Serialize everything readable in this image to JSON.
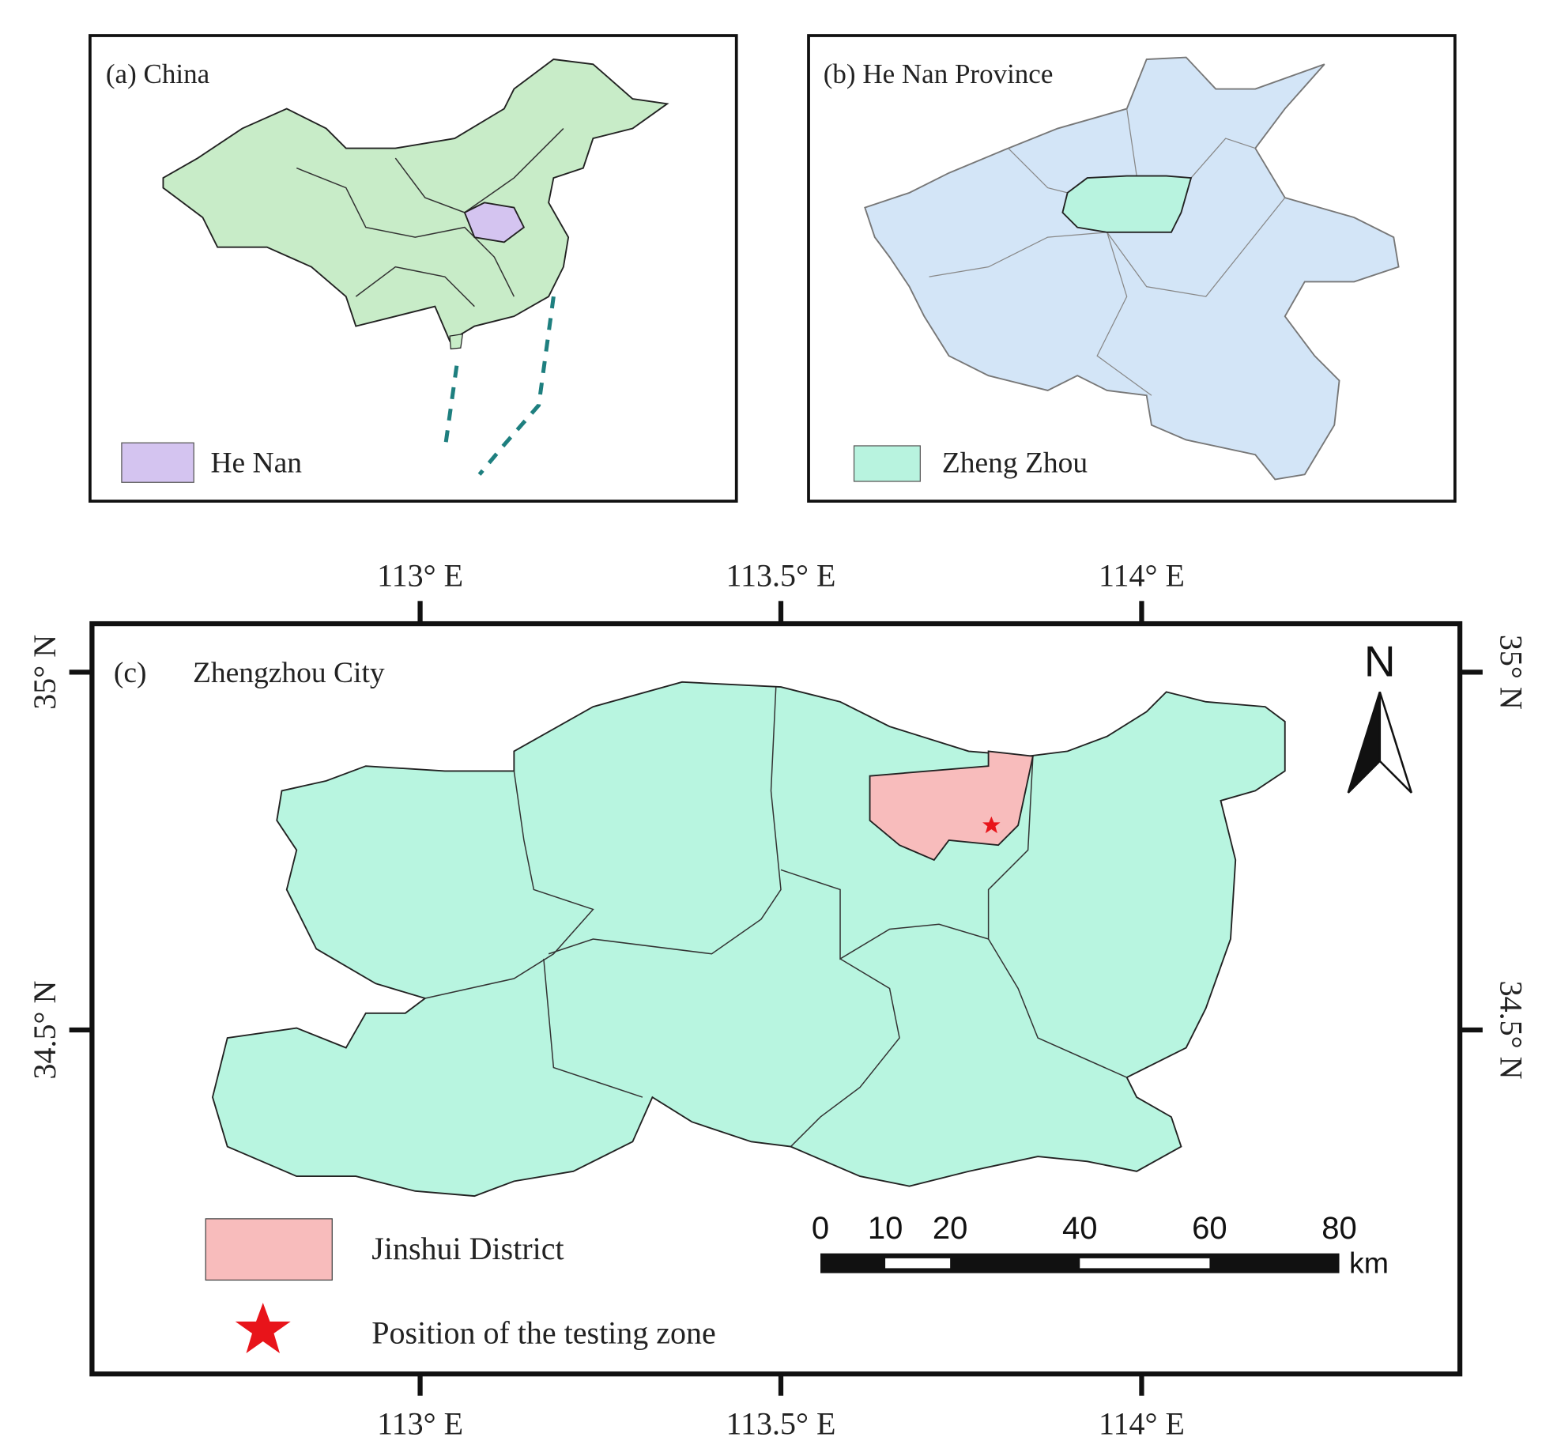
{
  "panel_a": {
    "title": "(a) China",
    "legend": "He Nan"
  },
  "panel_b": {
    "title": "(b) He Nan Province",
    "legend": "Zheng Zhou"
  },
  "panel_c": {
    "label": "(c)",
    "title": "Zhengzhou City",
    "north": "N",
    "longitude_labels": [
      "113° E",
      "113.5° E",
      "114° E"
    ],
    "latitude_labels": [
      "35° N",
      "34.5° N"
    ],
    "legend": [
      "Jinshui District",
      "Position of the testing zone"
    ],
    "scale_bar": {
      "ticks": [
        0,
        10,
        20,
        40,
        60,
        80
      ],
      "unit": "km"
    }
  }
}
